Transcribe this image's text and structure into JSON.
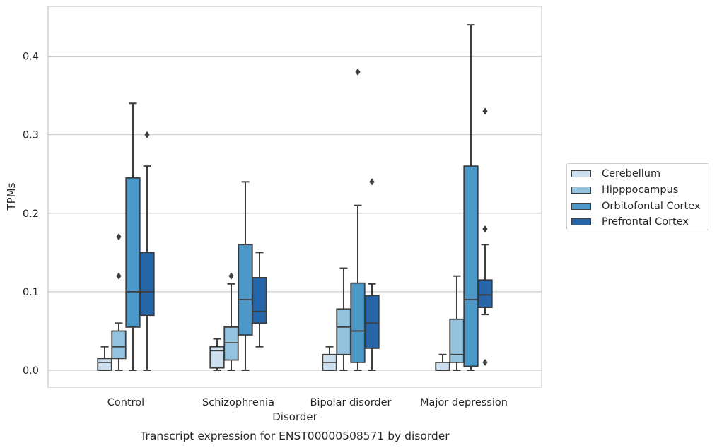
{
  "chart_data": {
    "type": "box",
    "title": "",
    "caption": "Transcript expression for ENST00000508571 by disorder",
    "xlabel": "Disorder",
    "ylabel": "TPMs",
    "ylim": [
      -0.021,
      0.465
    ],
    "yticks": [
      0.0,
      0.1,
      0.2,
      0.3,
      0.4
    ],
    "ytick_labels": [
      "0.0",
      "0.1",
      "0.2",
      "0.3",
      "0.4"
    ],
    "grid": "horizontal",
    "legend_position": "right",
    "categories": [
      "Control",
      "Schizophrenia",
      "Bipolar disorder",
      "Major depression"
    ],
    "series": [
      {
        "name": "Cerebellum",
        "color": "#cddeef",
        "boxes": [
          {
            "whislo": 0.0,
            "q1": 0.0,
            "med": 0.01,
            "q3": 0.015,
            "whishi": 0.03,
            "fliers": []
          },
          {
            "whislo": 0.0,
            "q1": 0.003,
            "med": 0.025,
            "q3": 0.03,
            "whishi": 0.04,
            "fliers": []
          },
          {
            "whislo": 0.0,
            "q1": 0.0,
            "med": 0.01,
            "q3": 0.02,
            "whishi": 0.03,
            "fliers": []
          },
          {
            "whislo": 0.0,
            "q1": 0.0,
            "med": 0.0,
            "q3": 0.01,
            "whishi": 0.02,
            "fliers": []
          }
        ]
      },
      {
        "name": "Hipppocampus",
        "color": "#93c3df",
        "boxes": [
          {
            "whislo": 0.0,
            "q1": 0.015,
            "med": 0.03,
            "q3": 0.05,
            "whishi": 0.06,
            "fliers": [
              0.12,
              0.17
            ]
          },
          {
            "whislo": 0.0,
            "q1": 0.013,
            "med": 0.035,
            "q3": 0.055,
            "whishi": 0.11,
            "fliers": [
              0.12
            ]
          },
          {
            "whislo": 0.0,
            "q1": 0.02,
            "med": 0.055,
            "q3": 0.078,
            "whishi": 0.13,
            "fliers": []
          },
          {
            "whislo": 0.0,
            "q1": 0.01,
            "med": 0.02,
            "q3": 0.065,
            "whishi": 0.12,
            "fliers": []
          }
        ]
      },
      {
        "name": "Orbitofontal Cortex",
        "color": "#4b98c9",
        "boxes": [
          {
            "whislo": 0.0,
            "q1": 0.055,
            "med": 0.1,
            "q3": 0.245,
            "whishi": 0.34,
            "fliers": []
          },
          {
            "whislo": 0.0,
            "q1": 0.045,
            "med": 0.09,
            "q3": 0.16,
            "whishi": 0.24,
            "fliers": []
          },
          {
            "whislo": 0.0,
            "q1": 0.01,
            "med": 0.05,
            "q3": 0.111,
            "whishi": 0.21,
            "fliers": [
              0.38
            ]
          },
          {
            "whislo": 0.0,
            "q1": 0.005,
            "med": 0.09,
            "q3": 0.26,
            "whishi": 0.44,
            "fliers": []
          }
        ]
      },
      {
        "name": "Prefrontal Cortex",
        "color": "#2565a8",
        "boxes": [
          {
            "whislo": 0.0,
            "q1": 0.07,
            "med": 0.1,
            "q3": 0.15,
            "whishi": 0.26,
            "fliers": [
              0.3
            ]
          },
          {
            "whislo": 0.03,
            "q1": 0.06,
            "med": 0.075,
            "q3": 0.118,
            "whishi": 0.15,
            "fliers": []
          },
          {
            "whislo": 0.0,
            "q1": 0.028,
            "med": 0.06,
            "q3": 0.095,
            "whishi": 0.11,
            "fliers": [
              0.24
            ]
          },
          {
            "whislo": 0.071,
            "q1": 0.08,
            "med": 0.096,
            "q3": 0.115,
            "whishi": 0.16,
            "fliers": [
              0.01,
              0.18,
              0.33
            ]
          }
        ]
      }
    ]
  }
}
